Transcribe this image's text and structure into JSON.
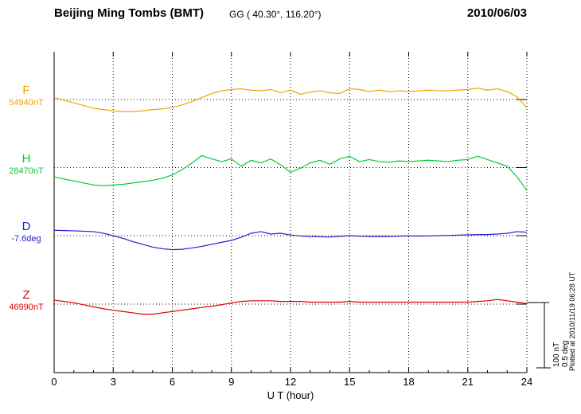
{
  "header": {
    "station": "Beijing Ming Tombs (BMT)",
    "coords": "GG ( 40.30°, 116.20°)",
    "date": "2010/06/03"
  },
  "channels": [
    {
      "label": "F",
      "value_label": "54940nT",
      "color": "#f0a500"
    },
    {
      "label": "H",
      "value_label": "28470nT",
      "color": "#00cc33"
    },
    {
      "label": "D",
      "value_label": "-7.6deg",
      "color": "#2222cc"
    },
    {
      "label": "Z",
      "value_label": "46990nT",
      "color": "#e00000"
    }
  ],
  "scalebar": {
    "nT_label": "100 nT",
    "deg_label": "0.5 deg"
  },
  "footer": {
    "plotted_note": "Plotted at 2010/11/19 06:28 UT"
  },
  "chart_data": {
    "type": "line",
    "title": "Beijing Ming Tombs (BMT) magnetogram 2010/06/03",
    "xlabel": "U T (hour)",
    "xlim": [
      0,
      24
    ],
    "xticks": [
      0,
      3,
      6,
      9,
      12,
      15,
      18,
      21,
      24
    ],
    "x_start": 0,
    "x_step": 0.5,
    "grid": "dotted vertical at 3h intervals, dotted horizontal at each channel baseline",
    "scale": {
      "nT_per_bar": 100,
      "deg_per_bar": 0.5
    },
    "series": [
      {
        "name": "F",
        "unit": "nT",
        "baseline": 54940,
        "color": "#f0a500",
        "offsets": [
          3,
          -1,
          -5,
          -9,
          -13,
          -15,
          -17,
          -18,
          -18,
          -17,
          -15,
          -14,
          -12,
          -8,
          -3,
          3,
          9,
          13,
          15,
          16,
          14,
          13,
          15,
          10,
          14,
          8,
          11,
          13,
          10,
          9,
          16,
          15,
          12,
          14,
          12,
          13,
          12,
          13,
          14,
          13,
          13,
          14,
          15,
          17,
          14,
          16,
          12,
          4,
          -12
        ]
      },
      {
        "name": "H",
        "unit": "nT",
        "baseline": 28470,
        "color": "#00cc33",
        "offsets": [
          -14,
          -17,
          -20,
          -23,
          -26,
          -27,
          -26,
          -25,
          -23,
          -21,
          -19,
          -16,
          -11,
          -3,
          7,
          18,
          13,
          9,
          13,
          2,
          11,
          7,
          13,
          4,
          -7,
          -1,
          7,
          11,
          5,
          13,
          17,
          9,
          12,
          9,
          8,
          10,
          9,
          10,
          11,
          10,
          9,
          11,
          12,
          17,
          12,
          7,
          2,
          -14,
          -34
        ]
      },
      {
        "name": "D",
        "unit": "deg",
        "baseline": -7.6,
        "color": "#2222cc",
        "offsets": [
          0.04,
          0.038,
          0.036,
          0.033,
          0.03,
          0.018,
          0,
          -0.02,
          -0.045,
          -0.065,
          -0.085,
          -0.098,
          -0.105,
          -0.102,
          -0.092,
          -0.08,
          -0.065,
          -0.05,
          -0.035,
          -0.012,
          0.018,
          0.03,
          0.012,
          0.018,
          0.005,
          -0.002,
          -0.006,
          -0.008,
          -0.01,
          -0.005,
          0,
          -0.004,
          -0.006,
          -0.005,
          -0.006,
          -0.004,
          -0.002,
          -0.003,
          -0.002,
          0,
          0.002,
          0.004,
          0.006,
          0.008,
          0.008,
          0.012,
          0.018,
          0.03,
          0.026
        ]
      },
      {
        "name": "Z",
        "unit": "nT",
        "baseline": 46990,
        "color": "#e00000",
        "offsets": [
          6,
          4,
          2,
          -1,
          -4,
          -7,
          -9,
          -11,
          -13,
          -15,
          -15,
          -13,
          -11,
          -9,
          -7,
          -5,
          -3,
          -1,
          2,
          4,
          5,
          5,
          5,
          4,
          4,
          4,
          3,
          3,
          3,
          3,
          4,
          3,
          3,
          3,
          3,
          3,
          3,
          3,
          3,
          3,
          3,
          3,
          3,
          4,
          5,
          7,
          5,
          3,
          1
        ]
      }
    ]
  }
}
